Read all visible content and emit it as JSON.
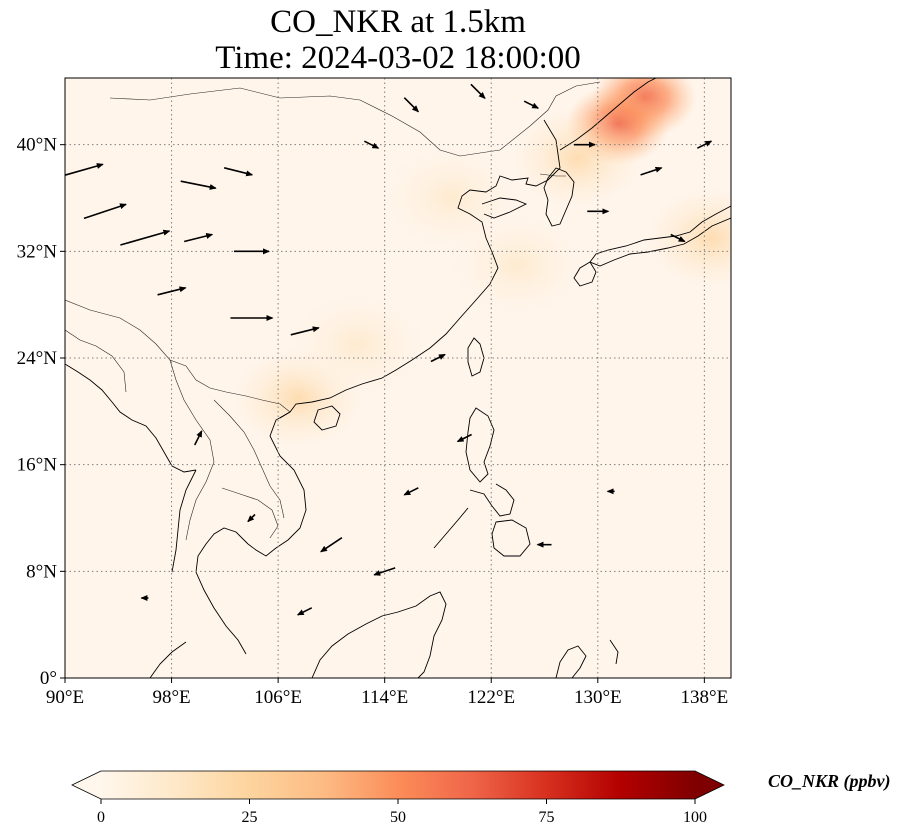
{
  "title": {
    "line1": "CO_NKR at 1.5km",
    "line2": "Time: 2024-03-02 18:00:00"
  },
  "map": {
    "extent": {
      "lon": [
        90,
        140
      ],
      "lat": [
        0,
        45
      ]
    },
    "xticks": [
      {
        "value": 90,
        "label": "90°E"
      },
      {
        "value": 98,
        "label": "98°E"
      },
      {
        "value": 106,
        "label": "106°E"
      },
      {
        "value": 114,
        "label": "114°E"
      },
      {
        "value": 122,
        "label": "122°E"
      },
      {
        "value": 130,
        "label": "130°E"
      },
      {
        "value": 138,
        "label": "138°E"
      }
    ],
    "yticks": [
      {
        "value": 0,
        "label": "0°"
      },
      {
        "value": 8,
        "label": "8°N"
      },
      {
        "value": 16,
        "label": "16°N"
      },
      {
        "value": 24,
        "label": "24°N"
      },
      {
        "value": 32,
        "label": "32°N"
      },
      {
        "value": 40,
        "label": "40°N"
      }
    ],
    "gridlines": true,
    "coastline_color": "#000000",
    "field_base_color": "#fff5eb"
  },
  "colorbar": {
    "label": "CO_NKR (ppbv)",
    "ticks": [
      "0",
      "25",
      "50",
      "75",
      "100"
    ],
    "range": [
      0,
      100
    ],
    "colormap": "OrRd",
    "extend": "both",
    "colors": [
      "#fff7ec",
      "#fee8c8",
      "#fdd49e",
      "#fdbb84",
      "#fc8d59",
      "#ef6548",
      "#d7301f",
      "#b30000",
      "#7f0000"
    ]
  },
  "chart_data": {
    "type": "heatmap",
    "variable": "CO_NKR",
    "title": "CO_NKR at 1.5km\nTime: 2024-03-02 18:00:00",
    "xlabel": "",
    "ylabel": "",
    "xlim": [
      90,
      140
    ],
    "ylim": [
      0,
      45
    ],
    "units": "ppbv",
    "value_range": [
      0,
      100
    ],
    "concentration_hotspots": [
      {
        "lon": 133.5,
        "lat": 43.5,
        "value": 45
      },
      {
        "lon": 131.5,
        "lat": 41.5,
        "value": 30
      },
      {
        "lon": 128.5,
        "lat": 39.0,
        "value": 15
      },
      {
        "lon": 138.5,
        "lat": 33.0,
        "value": 12
      },
      {
        "lon": 107.5,
        "lat": 21.0,
        "value": 10
      },
      {
        "lon": 124.0,
        "lat": 31.0,
        "value": 8
      },
      {
        "lon": 119.0,
        "lat": 36.0,
        "value": 5
      },
      {
        "lon": 112.0,
        "lat": 25.0,
        "value": 5
      }
    ],
    "wind_vectors": [
      {
        "lon": 91,
        "lat": 38,
        "u": 7,
        "v": 2
      },
      {
        "lon": 93,
        "lat": 35,
        "u": 6,
        "v": 2
      },
      {
        "lon": 96,
        "lat": 33,
        "u": 7,
        "v": 2
      },
      {
        "lon": 100,
        "lat": 37,
        "u": 5,
        "v": -1
      },
      {
        "lon": 103,
        "lat": 38,
        "u": 4,
        "v": -1
      },
      {
        "lon": 100,
        "lat": 33,
        "u": 4,
        "v": 1
      },
      {
        "lon": 104,
        "lat": 32,
        "u": 5,
        "v": 0
      },
      {
        "lon": 98,
        "lat": 29,
        "u": 4,
        "v": 1
      },
      {
        "lon": 104,
        "lat": 27,
        "u": 6,
        "v": 0
      },
      {
        "lon": 108,
        "lat": 26,
        "u": 4,
        "v": 1
      },
      {
        "lon": 113,
        "lat": 40,
        "u": 2,
        "v": -1
      },
      {
        "lon": 116,
        "lat": 43,
        "u": 2,
        "v": -2
      },
      {
        "lon": 121,
        "lat": 44,
        "u": 2,
        "v": -2
      },
      {
        "lon": 125,
        "lat": 43,
        "u": 2,
        "v": -1
      },
      {
        "lon": 129,
        "lat": 40,
        "u": 3,
        "v": 0
      },
      {
        "lon": 134,
        "lat": 38,
        "u": 3,
        "v": 1
      },
      {
        "lon": 138,
        "lat": 40,
        "u": 2,
        "v": 1
      },
      {
        "lon": 130,
        "lat": 35,
        "u": 3,
        "v": 0
      },
      {
        "lon": 136,
        "lat": 33,
        "u": 2,
        "v": -1
      },
      {
        "lon": 118,
        "lat": 24,
        "u": 2,
        "v": 1
      },
      {
        "lon": 120,
        "lat": 18,
        "u": -2,
        "v": -1
      },
      {
        "lon": 116,
        "lat": 14,
        "u": -2,
        "v": -1
      },
      {
        "lon": 110,
        "lat": 10,
        "u": -3,
        "v": -2
      },
      {
        "lon": 114,
        "lat": 8,
        "u": -3,
        "v": -1
      },
      {
        "lon": 108,
        "lat": 5,
        "u": -2,
        "v": -1
      },
      {
        "lon": 104,
        "lat": 12,
        "u": -1,
        "v": -1
      },
      {
        "lon": 96,
        "lat": 6,
        "u": -1,
        "v": 0
      },
      {
        "lon": 100,
        "lat": 18,
        "u": 1,
        "v": 2
      },
      {
        "lon": 126,
        "lat": 10,
        "u": -2,
        "v": 0
      },
      {
        "lon": 131,
        "lat": 14,
        "u": -1,
        "v": 0
      }
    ]
  }
}
